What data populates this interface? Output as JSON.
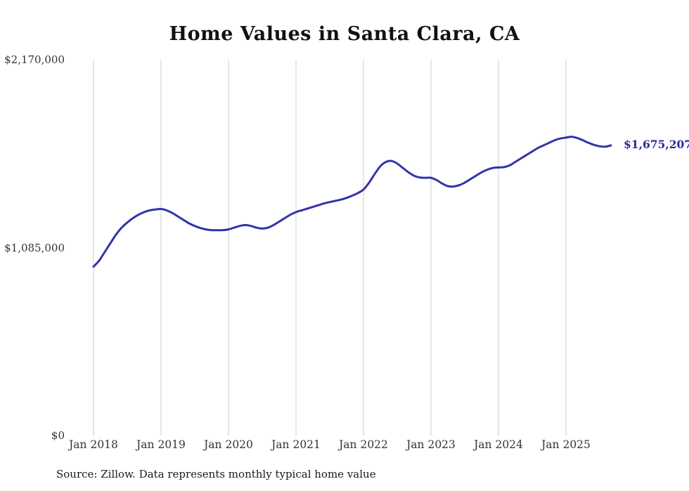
{
  "title": "Home Values in Santa Clara, CA",
  "source_note": "Source: Zillow. Data represents monthly typical home value",
  "end_label": "$1,675,207",
  "colors": {
    "line": "#3333aa",
    "grid": "#cccccc",
    "end_label": "#2b2b9d",
    "axis_text": "#333333"
  },
  "chart_data": {
    "type": "line",
    "title": "Home Values in Santa Clara, CA",
    "xlabel": "",
    "ylabel": "",
    "ylim": [
      0,
      2170000
    ],
    "y_ticks": [
      0,
      1085000,
      2170000
    ],
    "y_tick_labels": [
      "$0",
      "$1,085,000",
      "$2,170,000"
    ],
    "x_tick_labels": [
      "Jan 2018",
      "Jan 2019",
      "Jan 2020",
      "Jan 2021",
      "Jan 2022",
      "Jan 2023",
      "Jan 2024",
      "Jan 2025"
    ],
    "x_start": "2018-01",
    "x_interval": "monthly",
    "grid": "vertical-only",
    "legend": "none",
    "last_value_label": "$1,675,207",
    "series": [
      {
        "name": "Typical home value",
        "values": [
          975000,
          1010000,
          1060000,
          1110000,
          1160000,
          1200000,
          1230000,
          1255000,
          1275000,
          1290000,
          1300000,
          1305000,
          1308000,
          1300000,
          1285000,
          1265000,
          1245000,
          1225000,
          1210000,
          1198000,
          1190000,
          1186000,
          1185000,
          1186000,
          1190000,
          1200000,
          1210000,
          1215000,
          1210000,
          1200000,
          1195000,
          1200000,
          1215000,
          1235000,
          1255000,
          1275000,
          1290000,
          1300000,
          1310000,
          1320000,
          1330000,
          1340000,
          1348000,
          1355000,
          1362000,
          1372000,
          1385000,
          1400000,
          1420000,
          1460000,
          1510000,
          1555000,
          1580000,
          1585000,
          1570000,
          1545000,
          1520000,
          1500000,
          1490000,
          1488000,
          1488000,
          1475000,
          1455000,
          1440000,
          1438000,
          1445000,
          1460000,
          1480000,
          1500000,
          1520000,
          1535000,
          1545000,
          1548000,
          1550000,
          1560000,
          1580000,
          1600000,
          1620000,
          1640000,
          1660000,
          1675000,
          1690000,
          1705000,
          1715000,
          1720000,
          1725000,
          1718000,
          1705000,
          1690000,
          1678000,
          1670000,
          1668000,
          1675207
        ]
      }
    ]
  }
}
